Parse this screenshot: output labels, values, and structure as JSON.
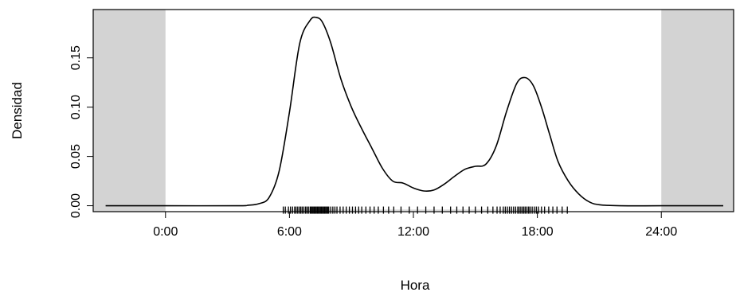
{
  "chart_data": {
    "type": "line",
    "title": "",
    "xlabel": "Hora",
    "ylabel": "Densidad",
    "xlim": [
      -3.5,
      27.5
    ],
    "ylim": [
      -0.006,
      0.199
    ],
    "xticks": [
      {
        "value": 0,
        "label": "0:00"
      },
      {
        "value": 6,
        "label": "6:00"
      },
      {
        "value": 12,
        "label": "12:00"
      },
      {
        "value": 18,
        "label": "18:00"
      },
      {
        "value": 24,
        "label": "24:00"
      }
    ],
    "yticks": [
      {
        "value": 0.0,
        "label": "0.00"
      },
      {
        "value": 0.05,
        "label": "0.05"
      },
      {
        "value": 0.1,
        "label": "0.10"
      },
      {
        "value": 0.15,
        "label": "0.15"
      }
    ],
    "shaded_regions": [
      {
        "x0": -3.5,
        "x1": 0,
        "color": "#d3d3d3"
      },
      {
        "x0": 24,
        "x1": 27.5,
        "color": "#d3d3d3"
      }
    ],
    "grid": false,
    "series": [
      {
        "color": "#000000",
        "x": [
          -2.9,
          0,
          3.5,
          4.0,
          4.5,
          5.0,
          5.5,
          6.0,
          6.5,
          7.0,
          7.3,
          7.6,
          8.0,
          8.5,
          9.0,
          9.5,
          10.0,
          10.5,
          11.0,
          11.5,
          12.0,
          12.5,
          13.0,
          13.5,
          14.0,
          14.5,
          15.0,
          15.5,
          16.0,
          16.5,
          17.0,
          17.4,
          17.8,
          18.2,
          18.6,
          19.0,
          19.5,
          20.0,
          20.5,
          21.0,
          22.0,
          24.0,
          27.0
        ],
        "y": [
          0.0,
          0.0,
          0.0,
          0.0005,
          0.002,
          0.008,
          0.035,
          0.095,
          0.165,
          0.188,
          0.191,
          0.186,
          0.165,
          0.128,
          0.1,
          0.078,
          0.058,
          0.038,
          0.025,
          0.023,
          0.018,
          0.015,
          0.016,
          0.022,
          0.03,
          0.037,
          0.04,
          0.042,
          0.06,
          0.095,
          0.124,
          0.13,
          0.122,
          0.1,
          0.072,
          0.045,
          0.025,
          0.012,
          0.004,
          0.001,
          0.0,
          0.0,
          0.0
        ]
      }
    ],
    "rug": [
      5.7,
      5.8,
      5.95,
      6.05,
      6.15,
      6.25,
      6.32,
      6.4,
      6.48,
      6.55,
      6.62,
      6.7,
      6.78,
      6.85,
      6.92,
      7.0,
      7.05,
      7.1,
      7.15,
      7.2,
      7.25,
      7.3,
      7.35,
      7.4,
      7.45,
      7.5,
      7.55,
      7.6,
      7.65,
      7.7,
      7.75,
      7.8,
      7.85,
      7.9,
      8.0,
      8.1,
      8.2,
      8.3,
      8.45,
      8.6,
      8.75,
      8.9,
      9.05,
      9.2,
      9.35,
      9.5,
      9.7,
      9.9,
      10.1,
      10.3,
      10.55,
      10.8,
      11.05,
      11.4,
      11.8,
      12.2,
      12.6,
      13.0,
      13.4,
      13.8,
      14.1,
      14.4,
      14.7,
      15.0,
      15.3,
      15.6,
      15.85,
      16.05,
      16.2,
      16.35,
      16.45,
      16.55,
      16.65,
      16.75,
      16.85,
      16.95,
      17.05,
      17.12,
      17.2,
      17.28,
      17.35,
      17.42,
      17.5,
      17.58,
      17.65,
      17.75,
      17.85,
      17.95,
      18.05,
      18.2,
      18.35,
      18.55,
      18.75,
      18.95,
      19.2,
      19.45
    ]
  }
}
